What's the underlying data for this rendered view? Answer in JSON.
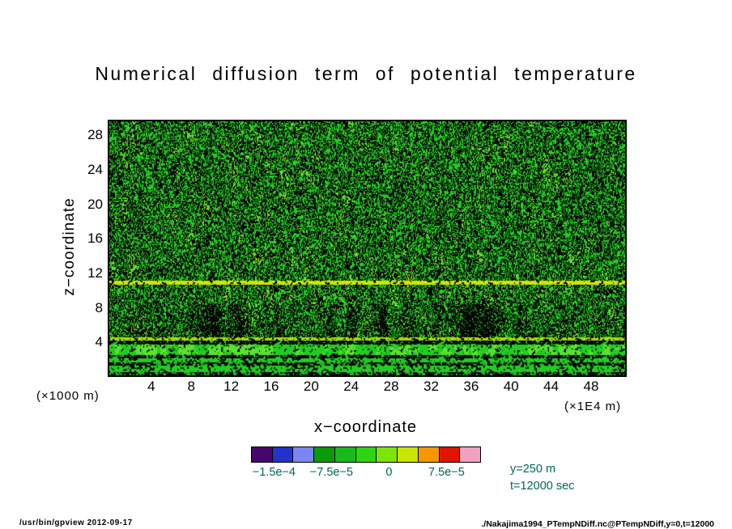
{
  "page": {
    "footer_left": "/usr/bin/gpview  2012-09-17",
    "footer_right": "./Nakajima1994_PTempNDiff.nc@PTempNDiff,y=0,t=12000"
  },
  "chart_data": {
    "type": "heatmap",
    "title": "Numerical diffusion term of potential temperature",
    "xlabel": "x−coordinate",
    "ylabel": "z−coordinate",
    "x_units_label": "(×1E4 m)",
    "y_units_label": "(×1000 m)",
    "x_ticks": [
      4,
      8,
      12,
      16,
      20,
      24,
      28,
      32,
      36,
      40,
      44,
      48
    ],
    "y_ticks": [
      28,
      24,
      20,
      16,
      12,
      8,
      4
    ],
    "xlim": [
      -0.2,
      51.4
    ],
    "ylim": [
      0.2,
      29.6
    ],
    "grid": false,
    "field_description": "Grid-scale numerical-diffusion noise: values oscillate about zero; slightly positive background (green) densely speckled with near-zero negative contour filaments (black) organized in vertical streaks over the whole domain; a continuous positive (yellow-green) horizontal band near z≈10.5 (×1000 m); layered horizontal positive/negative stripes below z≈4 near the surface; blacker columnar patches in the lowest 6 levels.",
    "annotations": [
      "y=250 m",
      "t=12000 sec"
    ],
    "colorbar": {
      "colors": [
        "#46066e",
        "#2233cc",
        "#7b86f2",
        "#0b9a0b",
        "#18b918",
        "#2ed411",
        "#7de40a",
        "#c8e400",
        "#f59600",
        "#e31300",
        "#f2a0c0"
      ],
      "min": -0.00018,
      "max": 0.00012,
      "tick_values": [
        -0.00015,
        -7.5e-05,
        0,
        7.5e-05
      ],
      "tick_labels": [
        "−1.5e−4",
        "−7.5e−5",
        "0",
        "7.5e−5"
      ]
    },
    "palette": {
      "field_green": "#22cc22",
      "field_green_bright": "#5ae22e",
      "field_green_dark": "#1db31d",
      "field_black": "#070707",
      "band_yellow": "#cfe600",
      "band_yellow_green": "#a6dc00"
    },
    "label_color": "#006655"
  }
}
